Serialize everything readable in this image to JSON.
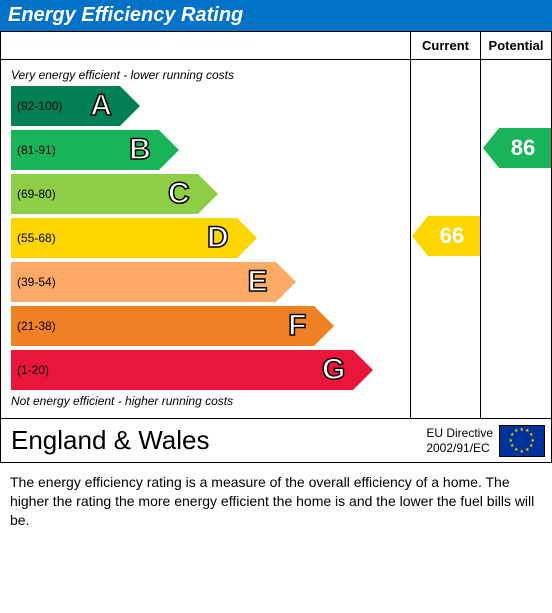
{
  "title": "Energy Efficiency Rating",
  "title_bg": "#0072c6",
  "title_color": "#ffffff",
  "columns": {
    "current": "Current",
    "potential": "Potential"
  },
  "subtitle_top": "Very energy efficient - lower running costs",
  "subtitle_bottom": "Not energy efficient - higher running costs",
  "bands": [
    {
      "letter": "A",
      "range": "(92-100)",
      "color": "#008054",
      "width_pct": 28
    },
    {
      "letter": "B",
      "range": "(81-91)",
      "color": "#19b459",
      "width_pct": 38
    },
    {
      "letter": "C",
      "range": "(69-80)",
      "color": "#8dce46",
      "width_pct": 48
    },
    {
      "letter": "D",
      "range": "(55-68)",
      "color": "#ffd500",
      "width_pct": 58
    },
    {
      "letter": "E",
      "range": "(39-54)",
      "color": "#fcaa65",
      "width_pct": 68
    },
    {
      "letter": "F",
      "range": "(21-38)",
      "color": "#ef8023",
      "width_pct": 78
    },
    {
      "letter": "G",
      "range": "(1-20)",
      "color": "#e9153b",
      "width_pct": 88
    }
  ],
  "band_row_height": 40,
  "band_gap": 4,
  "letter_outline_color": "#000000",
  "letter_fill_color": "#ffffff",
  "current": {
    "value": "66",
    "band_index": 3
  },
  "potential": {
    "value": "86",
    "band_index": 1
  },
  "region": "England & Wales",
  "directive_line1": "EU Directive",
  "directive_line2": "2002/91/EC",
  "description": "The energy efficiency rating is a measure of the overall efficiency of a home.  The higher the rating the more energy efficient the home is and the lower the fuel bills will be.",
  "eu_flag": {
    "bg": "#003399",
    "star_color": "#ffcc00"
  }
}
